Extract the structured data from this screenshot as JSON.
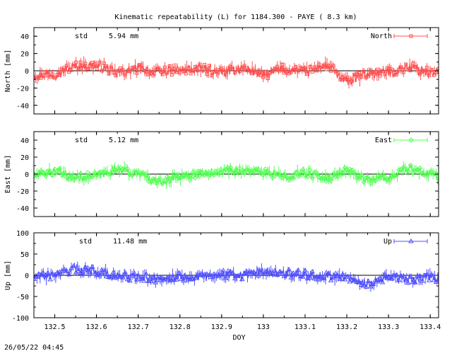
{
  "title": "Kinematic repeatability (L) for 1184.300 - PAYE  (  8.3 km)",
  "timestamp": "26/05/22 04:45",
  "chart_data": [
    {
      "type": "line",
      "ylabel": "North [mm]",
      "xlabel": "",
      "ylim": [
        -50,
        50
      ],
      "yticks": [
        -40,
        -20,
        0,
        20,
        40
      ],
      "xlim": [
        132.45,
        133.42
      ],
      "std_label": "std",
      "std_value": "5.94 mm",
      "series": [
        {
          "name": "North",
          "color": "#ff5050",
          "marker": "square",
          "amplitude": 6,
          "anchors": [
            [
              132.45,
              -5
            ],
            [
              132.5,
              -3
            ],
            [
              132.55,
              5
            ],
            [
              132.6,
              6
            ],
            [
              132.65,
              -2
            ],
            [
              132.7,
              2
            ],
            [
              132.75,
              -1
            ],
            [
              132.8,
              1
            ],
            [
              132.85,
              2
            ],
            [
              132.9,
              -2
            ],
            [
              132.95,
              3
            ],
            [
              133.0,
              -4
            ],
            [
              133.05,
              2
            ],
            [
              133.1,
              0
            ],
            [
              133.15,
              6
            ],
            [
              133.2,
              -12
            ],
            [
              133.25,
              -4
            ],
            [
              133.3,
              -2
            ],
            [
              133.35,
              4
            ],
            [
              133.4,
              -2
            ],
            [
              133.42,
              0
            ]
          ]
        }
      ]
    },
    {
      "type": "line",
      "ylabel": "East [mm]",
      "xlabel": "",
      "ylim": [
        -50,
        50
      ],
      "yticks": [
        -40,
        -20,
        0,
        20,
        40
      ],
      "xlim": [
        132.45,
        133.42
      ],
      "std_label": "std",
      "std_value": "5.12 mm",
      "series": [
        {
          "name": "East",
          "color": "#50ff50",
          "marker": "diamond",
          "amplitude": 5,
          "anchors": [
            [
              132.45,
              -1
            ],
            [
              132.5,
              3
            ],
            [
              132.55,
              -4
            ],
            [
              132.6,
              -2
            ],
            [
              132.65,
              6
            ],
            [
              132.7,
              0
            ],
            [
              132.75,
              -10
            ],
            [
              132.8,
              -3
            ],
            [
              132.85,
              0
            ],
            [
              132.9,
              4
            ],
            [
              132.95,
              4
            ],
            [
              133.0,
              2
            ],
            [
              133.05,
              -2
            ],
            [
              133.1,
              1
            ],
            [
              133.15,
              -4
            ],
            [
              133.2,
              3
            ],
            [
              133.25,
              -6
            ],
            [
              133.3,
              -4
            ],
            [
              133.35,
              6
            ],
            [
              133.4,
              0
            ],
            [
              133.42,
              -2
            ]
          ]
        }
      ]
    },
    {
      "type": "line",
      "ylabel": "Up [mm]",
      "xlabel": "DOY",
      "ylim": [
        -100,
        100
      ],
      "yticks": [
        -100,
        -50,
        0,
        50,
        100
      ],
      "xlim": [
        132.45,
        133.42
      ],
      "xticks": [
        "132.5",
        "132.6",
        "132.7",
        "132.8",
        "132.9",
        "133",
        "133.1",
        "133.2",
        "133.3",
        "133.4"
      ],
      "std_label": "std",
      "std_value": "11.48 mm",
      "series": [
        {
          "name": "Up",
          "color": "#5050ff",
          "marker": "triangle",
          "amplitude": 11,
          "anchors": [
            [
              132.45,
              -5
            ],
            [
              132.5,
              0
            ],
            [
              132.55,
              15
            ],
            [
              132.6,
              10
            ],
            [
              132.65,
              -2
            ],
            [
              132.7,
              -5
            ],
            [
              132.75,
              -8
            ],
            [
              132.8,
              -3
            ],
            [
              132.85,
              -5
            ],
            [
              132.9,
              3
            ],
            [
              132.95,
              0
            ],
            [
              133.0,
              10
            ],
            [
              133.05,
              4
            ],
            [
              133.1,
              2
            ],
            [
              133.15,
              -2
            ],
            [
              133.2,
              -5
            ],
            [
              133.25,
              -20
            ],
            [
              133.3,
              -5
            ],
            [
              133.35,
              -10
            ],
            [
              133.4,
              -5
            ],
            [
              133.42,
              -8
            ]
          ]
        }
      ]
    }
  ]
}
